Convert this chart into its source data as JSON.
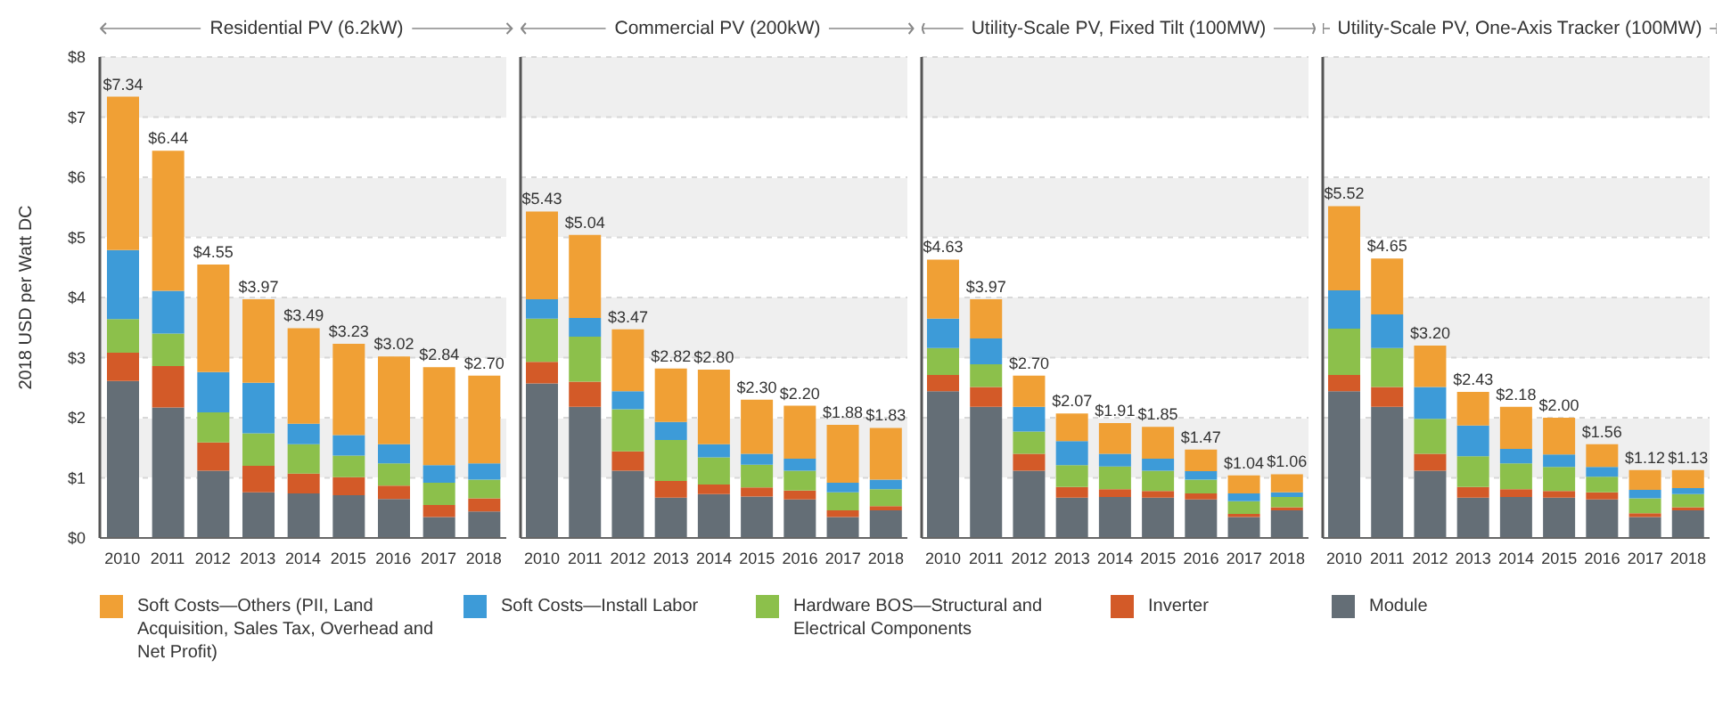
{
  "chart_data": [
    {
      "type": "bar",
      "stacked": true,
      "title": "Residential PV (6.2kW)",
      "ylabel": "2018 USD per Watt DC",
      "categories": [
        "2010",
        "2011",
        "2012",
        "2013",
        "2014",
        "2015",
        "2016",
        "2017",
        "2018"
      ],
      "ylim": [
        0,
        8
      ],
      "yticks": [
        {
          "value": 0,
          "label": "$0"
        },
        {
          "value": 1,
          "label": "$1"
        },
        {
          "value": 2,
          "label": "$2"
        },
        {
          "value": 3,
          "label": "$3"
        },
        {
          "value": 4,
          "label": "$4"
        },
        {
          "value": 5,
          "label": "$5"
        },
        {
          "value": 6,
          "label": "$6"
        },
        {
          "value": 7,
          "label": "$7"
        },
        {
          "value": 8,
          "label": "$8"
        }
      ],
      "grid": "y",
      "legend": "bottom",
      "totals": [
        "$7.34",
        "$6.44",
        "$4.55",
        "$3.97",
        "$3.49",
        "$3.23",
        "$3.02",
        "$2.84",
        "$2.70"
      ],
      "series": [
        {
          "name": "Module",
          "color": "#646e76",
          "values": [
            2.61,
            2.17,
            1.12,
            0.76,
            0.74,
            0.71,
            0.65,
            0.35,
            0.44
          ]
        },
        {
          "name": "Inverter",
          "color": "#d35a28",
          "values": [
            0.47,
            0.69,
            0.47,
            0.44,
            0.33,
            0.3,
            0.22,
            0.2,
            0.22
          ]
        },
        {
          "name": "Hardware BOS—Structural and Electrical Components",
          "color": "#8cc04b",
          "values": [
            0.56,
            0.54,
            0.5,
            0.54,
            0.49,
            0.36,
            0.37,
            0.37,
            0.31
          ]
        },
        {
          "name": "Soft Costs—Install Labor",
          "color": "#3d9bd8",
          "values": [
            1.15,
            0.71,
            0.67,
            0.84,
            0.34,
            0.34,
            0.32,
            0.29,
            0.27
          ]
        },
        {
          "name": "Soft Costs—Others (PII, Land Acquisition, Sales Tax, Overhead and Net Profit)",
          "color": "#f0a035",
          "values": [
            2.55,
            2.33,
            1.79,
            1.39,
            1.59,
            1.52,
            1.46,
            1.63,
            1.46
          ]
        }
      ]
    },
    {
      "type": "bar",
      "stacked": true,
      "title": "Commercial PV (200kW)",
      "categories": [
        "2010",
        "2011",
        "2012",
        "2013",
        "2014",
        "2015",
        "2016",
        "2017",
        "2018"
      ],
      "ylim": [
        0,
        8
      ],
      "yticks": [
        0,
        1,
        2,
        3,
        4,
        5,
        6,
        7,
        8
      ],
      "tick_labels": "x",
      "grid": "y",
      "totals": [
        "$5.43",
        "$5.04",
        "$3.47",
        "$2.82",
        "$2.80",
        "$2.30",
        "$2.20",
        "$1.88",
        "$1.83"
      ],
      "series": [
        {
          "color": "#646e76",
          "values": [
            2.57,
            2.18,
            1.12,
            0.67,
            0.73,
            0.69,
            0.64,
            0.35,
            0.46
          ]
        },
        {
          "color": "#d35a28",
          "values": [
            0.36,
            0.42,
            0.32,
            0.28,
            0.16,
            0.15,
            0.15,
            0.11,
            0.07
          ]
        },
        {
          "color": "#8cc04b",
          "values": [
            0.72,
            0.75,
            0.7,
            0.68,
            0.45,
            0.38,
            0.33,
            0.3,
            0.28
          ]
        },
        {
          "color": "#3d9bd8",
          "values": [
            0.32,
            0.31,
            0.3,
            0.3,
            0.22,
            0.18,
            0.2,
            0.16,
            0.16
          ]
        },
        {
          "color": "#f0a035",
          "values": [
            1.46,
            1.38,
            1.03,
            0.89,
            1.24,
            0.9,
            0.88,
            0.96,
            0.86
          ]
        }
      ]
    },
    {
      "type": "bar",
      "stacked": true,
      "title": "Utility-Scale PV, Fixed Tilt (100MW)",
      "categories": [
        "2010",
        "2011",
        "2012",
        "2013",
        "2014",
        "2015",
        "2016",
        "2017",
        "2018"
      ],
      "ylim": [
        0,
        8
      ],
      "yticks": [
        0,
        1,
        2,
        3,
        4,
        5,
        6,
        7,
        8
      ],
      "tick_labels": "x",
      "grid": "y",
      "totals": [
        "$4.63",
        "$3.97",
        "$2.70",
        "$2.07",
        "$1.91",
        "$1.85",
        "$1.47",
        "$1.04",
        "$1.06"
      ],
      "series": [
        {
          "color": "#646e76",
          "values": [
            2.44,
            2.18,
            1.12,
            0.67,
            0.68,
            0.67,
            0.64,
            0.35,
            0.46
          ]
        },
        {
          "color": "#d35a28",
          "values": [
            0.27,
            0.33,
            0.28,
            0.18,
            0.13,
            0.11,
            0.1,
            0.05,
            0.05
          ]
        },
        {
          "color": "#8cc04b",
          "values": [
            0.45,
            0.38,
            0.37,
            0.36,
            0.38,
            0.34,
            0.23,
            0.21,
            0.17
          ]
        },
        {
          "color": "#3d9bd8",
          "values": [
            0.49,
            0.43,
            0.41,
            0.4,
            0.21,
            0.2,
            0.14,
            0.13,
            0.08
          ]
        },
        {
          "color": "#f0a035",
          "values": [
            0.98,
            0.65,
            0.52,
            0.46,
            0.51,
            0.53,
            0.36,
            0.3,
            0.3
          ]
        }
      ]
    },
    {
      "type": "bar",
      "stacked": true,
      "title": "Utility-Scale PV, One-Axis Tracker (100MW)",
      "categories": [
        "2010",
        "2011",
        "2012",
        "2013",
        "2014",
        "2015",
        "2016",
        "2017",
        "2018"
      ],
      "ylim": [
        0,
        8
      ],
      "yticks": [
        0,
        1,
        2,
        3,
        4,
        5,
        6,
        7,
        8
      ],
      "tick_labels": "x",
      "grid": "y",
      "totals": [
        "$5.52",
        "$4.65",
        "$3.20",
        "$2.43",
        "$2.18",
        "$2.00",
        "$1.56",
        "$1.12",
        "$1.13"
      ],
      "series": [
        {
          "color": "#646e76",
          "values": [
            2.44,
            2.18,
            1.12,
            0.67,
            0.68,
            0.67,
            0.64,
            0.35,
            0.46
          ]
        },
        {
          "color": "#d35a28",
          "values": [
            0.27,
            0.33,
            0.28,
            0.18,
            0.13,
            0.11,
            0.12,
            0.06,
            0.05
          ]
        },
        {
          "color": "#8cc04b",
          "values": [
            0.77,
            0.65,
            0.58,
            0.51,
            0.43,
            0.4,
            0.26,
            0.25,
            0.22
          ]
        },
        {
          "color": "#3d9bd8",
          "values": [
            0.64,
            0.56,
            0.53,
            0.51,
            0.24,
            0.21,
            0.16,
            0.14,
            0.1
          ]
        },
        {
          "color": "#f0a035",
          "values": [
            1.4,
            0.93,
            0.69,
            0.56,
            0.7,
            0.61,
            0.38,
            0.33,
            0.3
          ]
        }
      ]
    }
  ]
}
